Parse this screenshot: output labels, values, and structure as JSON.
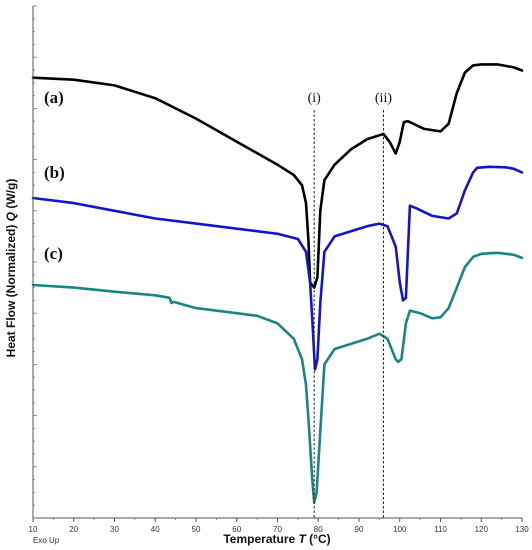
{
  "chart_data": {
    "type": "line",
    "xlabel_main": "Temperature ",
    "xlabel_sym": "T",
    "xlabel_unit": " (°C)",
    "ylabel_main": "Heat Flow (Normalized) ",
    "ylabel_sym": "Q",
    "ylabel_unit": " (W/g)",
    "exo_label": "Exo Up",
    "xlim": [
      10,
      130
    ],
    "x_ticks": [
      "10",
      "20",
      "30",
      "40",
      "50",
      "60",
      "70",
      "80",
      "90",
      "100",
      "110",
      "120",
      "130"
    ],
    "ylim": [
      0,
      100
    ],
    "grid": false,
    "vlines": [
      {
        "label": "(i)",
        "x": 79
      },
      {
        "label": "(ii)",
        "x": 96
      }
    ],
    "series": [
      {
        "name": "(a)",
        "color": "#000000",
        "points": [
          [
            10,
            86
          ],
          [
            20,
            85.6
          ],
          [
            30,
            84.5
          ],
          [
            40,
            82
          ],
          [
            50,
            78
          ],
          [
            60,
            73.5
          ],
          [
            70,
            69
          ],
          [
            74,
            67
          ],
          [
            76,
            65
          ],
          [
            77,
            61.5
          ],
          [
            77.6,
            54
          ],
          [
            78,
            46
          ],
          [
            79,
            45
          ],
          [
            79.8,
            47
          ],
          [
            80.5,
            60
          ],
          [
            81.5,
            66
          ],
          [
            84,
            69
          ],
          [
            88,
            72
          ],
          [
            92,
            74
          ],
          [
            96,
            75
          ],
          [
            97.5,
            73.5
          ],
          [
            99,
            71.2
          ],
          [
            100,
            73.5
          ],
          [
            101,
            77.3
          ],
          [
            102,
            77.5
          ],
          [
            106,
            76
          ],
          [
            110,
            75.5
          ],
          [
            112,
            77
          ],
          [
            114,
            83
          ],
          [
            116,
            87
          ],
          [
            118,
            88.4
          ],
          [
            120,
            88.6
          ],
          [
            124,
            88.6
          ],
          [
            126,
            88.3
          ],
          [
            128,
            88
          ],
          [
            130,
            87.4
          ]
        ]
      },
      {
        "name": "(b)",
        "color": "#1515c9",
        "points": [
          [
            10,
            62.5
          ],
          [
            20,
            61.5
          ],
          [
            30,
            60
          ],
          [
            40,
            58.5
          ],
          [
            50,
            57.5
          ],
          [
            60,
            56.5
          ],
          [
            70,
            55.5
          ],
          [
            75,
            54.5
          ],
          [
            77,
            52
          ],
          [
            78,
            46
          ],
          [
            78.6,
            38
          ],
          [
            79.2,
            29
          ],
          [
            79.8,
            31
          ],
          [
            80.5,
            42
          ],
          [
            81.5,
            52
          ],
          [
            84,
            55
          ],
          [
            88,
            56
          ],
          [
            92,
            57
          ],
          [
            95,
            57.5
          ],
          [
            97,
            57
          ],
          [
            99,
            53
          ],
          [
            100,
            46
          ],
          [
            100.8,
            42.5
          ],
          [
            101.5,
            43
          ],
          [
            102.5,
            61
          ],
          [
            104,
            60.5
          ],
          [
            108,
            59
          ],
          [
            112,
            58.5
          ],
          [
            114,
            59.5
          ],
          [
            116,
            64
          ],
          [
            118,
            67.5
          ],
          [
            119,
            68.4
          ],
          [
            122,
            68.6
          ],
          [
            126,
            68.5
          ],
          [
            128,
            68.2
          ],
          [
            130,
            67.5
          ]
        ]
      },
      {
        "name": "(c)",
        "color": "#1a8585",
        "points": [
          [
            10,
            45.5
          ],
          [
            20,
            45
          ],
          [
            30,
            44.2
          ],
          [
            40,
            43.5
          ],
          [
            43.5,
            43
          ],
          [
            44,
            42
          ],
          [
            44.5,
            42.2
          ],
          [
            50,
            41
          ],
          [
            60,
            40
          ],
          [
            65,
            39.5
          ],
          [
            70,
            38
          ],
          [
            74,
            35
          ],
          [
            76,
            31
          ],
          [
            77,
            26
          ],
          [
            77.7,
            18
          ],
          [
            78.5,
            8
          ],
          [
            79,
            3
          ],
          [
            79.6,
            5
          ],
          [
            80.5,
            17
          ],
          [
            81.5,
            30
          ],
          [
            84,
            33
          ],
          [
            88,
            34
          ],
          [
            92,
            35
          ],
          [
            95,
            36
          ],
          [
            97,
            35
          ],
          [
            99,
            31
          ],
          [
            99.6,
            30.5
          ],
          [
            100.4,
            31
          ],
          [
            101.5,
            38
          ],
          [
            102.5,
            40.5
          ],
          [
            105,
            40
          ],
          [
            108,
            39
          ],
          [
            110,
            39.2
          ],
          [
            112,
            41
          ],
          [
            114,
            45
          ],
          [
            116,
            49
          ],
          [
            118,
            51
          ],
          [
            120,
            51.6
          ],
          [
            124,
            51.8
          ],
          [
            128,
            51.4
          ],
          [
            130,
            50.8
          ]
        ]
      }
    ]
  }
}
